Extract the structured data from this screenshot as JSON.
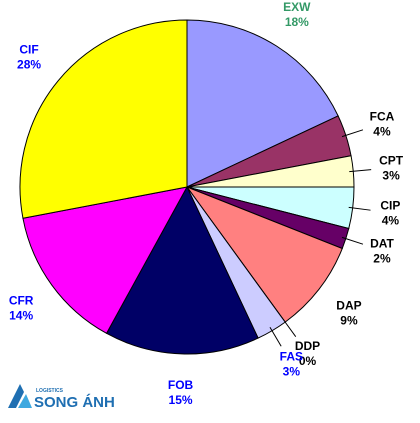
{
  "chart_data": {
    "type": "pie",
    "categories": [
      "EXW",
      "FCA",
      "CPT",
      "CIP",
      "DAT",
      "DAP",
      "DDP",
      "FAS",
      "FOB",
      "CFR",
      "CIF"
    ],
    "values": [
      18,
      4,
      3,
      4,
      2,
      9,
      0,
      3,
      15,
      14,
      28
    ],
    "value_labels": [
      "18%",
      "4%",
      "3%",
      "4%",
      "2%",
      "9%",
      "0%",
      "3%",
      "15%",
      "14%",
      "28%"
    ],
    "colors": [
      "#9999ff",
      "#993366",
      "#ffffcc",
      "#ccffff",
      "#660066",
      "#ff8080",
      "#c0c0c0",
      "#ccccff",
      "#000066",
      "#ff00ff",
      "#ffff00"
    ],
    "label_colors": [
      "#339966",
      "#000000",
      "#000000",
      "#000000",
      "#000000",
      "#000000",
      "#000000",
      "#0000ff",
      "#0000ff",
      "#0000ff",
      "#0000ff"
    ]
  },
  "logo": {
    "tagline": "LOGISTICS",
    "name": "SONG ÁNH"
  }
}
